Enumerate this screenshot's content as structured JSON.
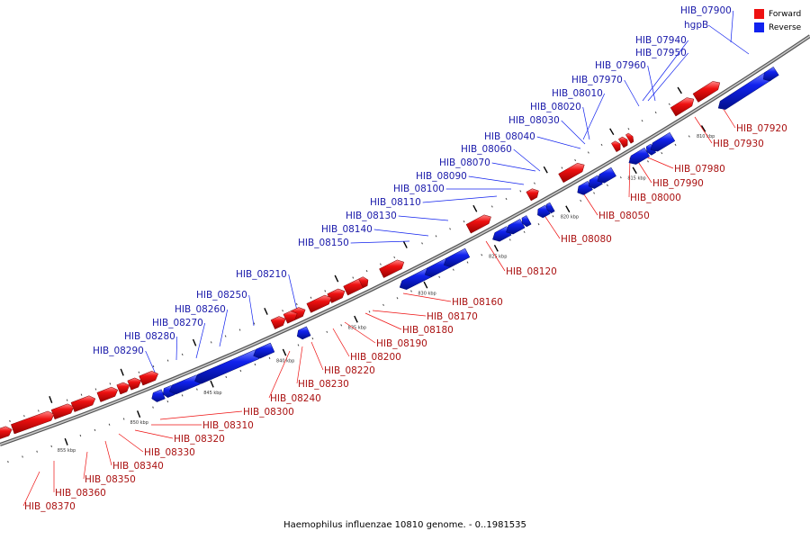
{
  "caption": "Haemophilus influenzae 10810 genome. - 0..1981535",
  "colors": {
    "forward": "#ee1111",
    "reverse": "#1122ee",
    "forward_label": "#aa1111",
    "reverse_label": "#1a1aaa",
    "backbone": "#888888"
  },
  "legend": [
    {
      "label": "Forward",
      "color": "#ee1111"
    },
    {
      "label": "Reverse",
      "color": "#1122ee"
    }
  ],
  "scale_labels": [
    "810 kbp",
    "815 kbp",
    "820 kbp",
    "825 kbp",
    "830 kbp",
    "835 kbp",
    "840 kbp",
    "845 kbp",
    "850 kbp",
    "855 kbp"
  ],
  "reverse_genes": [
    "HIB_07900",
    "hgpB",
    "HIB_07940",
    "HIB_07950",
    "HIB_07960",
    "HIB_07970",
    "HIB_08010",
    "HIB_08020",
    "HIB_08030",
    "HIB_08040",
    "HIB_08060",
    "HIB_08070",
    "HIB_08090",
    "HIB_08100",
    "HIB_08110",
    "HIB_08130",
    "HIB_08140",
    "HIB_08150",
    "HIB_08210",
    "HIB_08250",
    "HIB_08260",
    "HIB_08270",
    "HIB_08280",
    "HIB_08290"
  ],
  "forward_genes": [
    "HIB_07920",
    "HIB_07930",
    "HIB_07980",
    "HIB_07990",
    "HIB_08000",
    "HIB_08050",
    "HIB_08080",
    "HIB_08120",
    "HIB_08160",
    "HIB_08170",
    "HIB_08180",
    "HIB_08190",
    "HIB_08200",
    "HIB_08220",
    "HIB_08230",
    "HIB_08240",
    "HIB_08300",
    "HIB_08310",
    "HIB_08320",
    "HIB_08330",
    "HIB_08340",
    "HIB_08350",
    "HIB_08360",
    "HIB_08370"
  ]
}
